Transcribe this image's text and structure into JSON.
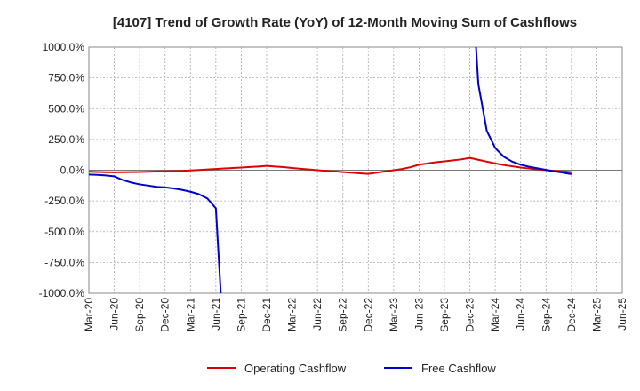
{
  "chart_data": {
    "type": "line",
    "title": "[4107]  Trend of Growth Rate (YoY) of 12-Month Moving Sum of Cashflows",
    "xlabel": "",
    "ylabel": "",
    "ylim": [
      -1000,
      1000
    ],
    "y_ticks": [
      "1000.0%",
      "750.0%",
      "500.0%",
      "250.0%",
      "0.0%",
      "-250.0%",
      "-500.0%",
      "-750.0%",
      "-1000.0%"
    ],
    "x_tick_labels": [
      "Mar-20",
      "Jun-20",
      "Sep-20",
      "Dec-20",
      "Mar-21",
      "Jun-21",
      "Sep-21",
      "Dec-21",
      "Mar-22",
      "Jun-22",
      "Sep-22",
      "Dec-22",
      "Mar-23",
      "Jun-23",
      "Sep-23",
      "Dec-23",
      "Mar-24",
      "Jun-24",
      "Sep-24",
      "Dec-24",
      "Mar-25",
      "Jun-25"
    ],
    "x": [
      "Mar-20",
      "Apr-20",
      "May-20",
      "Jun-20",
      "Jul-20",
      "Aug-20",
      "Sep-20",
      "Oct-20",
      "Nov-20",
      "Dec-20",
      "Jan-21",
      "Feb-21",
      "Mar-21",
      "Apr-21",
      "May-21",
      "Jun-21",
      "Jul-21",
      "Aug-21",
      "Sep-21",
      "Oct-21",
      "Nov-21",
      "Dec-21",
      "Jan-22",
      "Feb-22",
      "Mar-22",
      "Apr-22",
      "May-22",
      "Jun-22",
      "Jul-22",
      "Aug-22",
      "Sep-22",
      "Oct-22",
      "Nov-22",
      "Dec-22",
      "Jan-23",
      "Feb-23",
      "Mar-23",
      "Apr-23",
      "May-23",
      "Jun-23",
      "Jul-23",
      "Aug-23",
      "Sep-23",
      "Oct-23",
      "Nov-23",
      "Dec-23",
      "Jan-24",
      "Feb-24",
      "Mar-24",
      "Apr-24",
      "May-24",
      "Jun-24",
      "Jul-24",
      "Aug-24",
      "Sep-24",
      "Oct-24",
      "Nov-24",
      "Dec-24"
    ],
    "grid": true,
    "legend_position": "bottom",
    "series": [
      {
        "name": "Operating Cashflow",
        "color": "#dd0000",
        "values": [
          -12,
          -14,
          -16,
          -17,
          -16,
          -15,
          -14,
          -13,
          -11,
          -9,
          -7,
          -5,
          -2,
          2,
          6,
          10,
          14,
          18,
          22,
          26,
          30,
          35,
          30,
          25,
          18,
          12,
          6,
          0,
          -5,
          -10,
          -15,
          -20,
          -25,
          -30,
          -20,
          -10,
          0,
          10,
          25,
          45,
          55,
          65,
          72,
          80,
          88,
          100,
          85,
          70,
          55,
          42,
          32,
          22,
          14,
          6,
          0,
          -5,
          -10,
          -15
        ]
      },
      {
        "name": "Free Cashflow",
        "color": "#0000cc",
        "values": [
          -35,
          -38,
          -42,
          -50,
          -80,
          -100,
          -115,
          -125,
          -135,
          -140,
          -148,
          -160,
          -175,
          -195,
          -230,
          -310,
          -1500,
          null,
          null,
          null,
          null,
          null,
          null,
          null,
          null,
          null,
          null,
          null,
          null,
          null,
          null,
          null,
          null,
          null,
          null,
          null,
          null,
          null,
          null,
          null,
          null,
          null,
          null,
          null,
          null,
          1800,
          700,
          320,
          180,
          110,
          70,
          45,
          28,
          15,
          3,
          -10,
          -20,
          -32
        ]
      }
    ]
  }
}
